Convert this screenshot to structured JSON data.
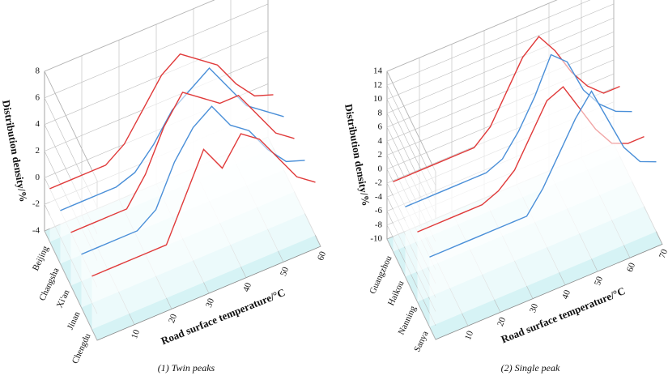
{
  "chart_data": [
    {
      "type": "surface3d",
      "caption": "(1) Twin peaks",
      "zlabel": "Distribution density/%",
      "xlabel": "Road surface temperature/°C",
      "x": [
        0,
        5,
        10,
        15,
        20,
        25,
        30,
        35,
        40,
        45,
        50,
        55,
        60
      ],
      "xlim": [
        0,
        60
      ],
      "xticks": [
        10,
        20,
        30,
        40,
        50,
        60
      ],
      "zlim": [
        -4,
        8
      ],
      "zticks": [
        -4,
        -2,
        0,
        2,
        4,
        6,
        8
      ],
      "series": [
        {
          "name": "Beijing",
          "color": "#e03a3a",
          "values": [
            0,
            0,
            0,
            0,
            1,
            3,
            5,
            6,
            5,
            4,
            2,
            0.5,
            0
          ]
        },
        {
          "name": "Changsha",
          "color": "#4a8fd8",
          "values": [
            0,
            0,
            0,
            0,
            0.5,
            2,
            4,
            5,
            6,
            4,
            2,
            1,
            0
          ]
        },
        {
          "name": "Xi'an",
          "color": "#e03a3a",
          "values": [
            0,
            0,
            0,
            0,
            2,
            5,
            7,
            6,
            5,
            5,
            3,
            1,
            0
          ]
        },
        {
          "name": "Jinan",
          "color": "#4a8fd8",
          "values": [
            0,
            0,
            0,
            0,
            1,
            4,
            6,
            7,
            5,
            4,
            2,
            0.5,
            0
          ]
        },
        {
          "name": "Chengdu",
          "color": "#e03a3a",
          "values": [
            0,
            0,
            0,
            0,
            0,
            3,
            6,
            4,
            6,
            5,
            3,
            1,
            0
          ]
        }
      ],
      "grid": true
    },
    {
      "type": "surface3d",
      "caption": "(2) Single peak",
      "zlabel": "Distribution density/%",
      "xlabel": "Road surface temperature/°C",
      "x": [
        0,
        5,
        10,
        15,
        20,
        25,
        30,
        35,
        40,
        45,
        50,
        55,
        60,
        65,
        70
      ],
      "xlim": [
        0,
        70
      ],
      "xticks": [
        10,
        20,
        30,
        40,
        50,
        60,
        70
      ],
      "zlim": [
        -10,
        14
      ],
      "zticks": [
        -10,
        -8,
        -6,
        -4,
        -2,
        0,
        2,
        4,
        6,
        8,
        10,
        12,
        14
      ],
      "series": [
        {
          "name": "Guangzhou",
          "color": "#e03a3a",
          "values": [
            0,
            0,
            0,
            0,
            0,
            0,
            2,
            6,
            10,
            12,
            9,
            5,
            2,
            0,
            0
          ]
        },
        {
          "name": "Haikou",
          "color": "#4a8fd8",
          "values": [
            0,
            0,
            0,
            0,
            0,
            0,
            1,
            4,
            8,
            13,
            11,
            6,
            3,
            1,
            0
          ]
        },
        {
          "name": "Nanning",
          "color": "#e03a3a",
          "values": [
            0,
            0,
            0,
            0,
            0,
            1,
            3,
            7,
            11,
            12,
            8,
            4,
            1,
            0,
            0
          ]
        },
        {
          "name": "Sanya",
          "color": "#4a8fd8",
          "values": [
            0,
            0,
            0,
            0,
            0,
            0,
            0,
            3,
            7,
            11,
            14,
            9,
            4,
            1,
            0
          ]
        }
      ],
      "grid": true
    }
  ]
}
